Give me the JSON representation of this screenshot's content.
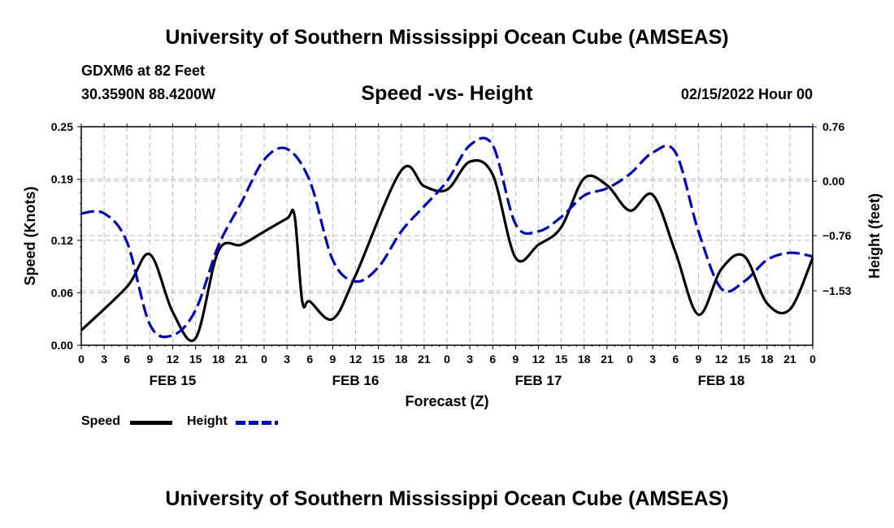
{
  "header": {
    "title": "University of Southern Mississippi Ocean Cube (AMSEAS)",
    "station": "GDXM6 at 82 Feet",
    "coords": "30.3590N  88.4200W",
    "subtitle": "Speed -vs- Height",
    "run_time": "02/15/2022 Hour 00"
  },
  "footer": {
    "title": "University of Southern Mississippi Ocean Cube (AMSEAS)"
  },
  "legend": {
    "speed": "Speed",
    "height": "Height"
  },
  "chart_data": {
    "type": "line",
    "xlabel": "Forecast (Z)",
    "ylabel_left": "Speed (Knots)",
    "ylabel_right": "Height (feet)",
    "x_range_hours": [
      0,
      96
    ],
    "x_tick_step_hours": 3,
    "x_tick_labels": [
      "0",
      "3",
      "6",
      "9",
      "12",
      "15",
      "18",
      "21",
      "0",
      "3",
      "6",
      "9",
      "12",
      "15",
      "18",
      "21",
      "0",
      "3",
      "6",
      "9",
      "12",
      "15",
      "18",
      "21",
      "0",
      "3",
      "6",
      "9",
      "12",
      "15",
      "18",
      "21",
      "0"
    ],
    "day_labels": [
      {
        "hour": 12,
        "label": "FEB 15"
      },
      {
        "hour": 36,
        "label": "FEB 16"
      },
      {
        "hour": 60,
        "label": "FEB 17"
      },
      {
        "hour": 84,
        "label": "FEB 18"
      }
    ],
    "ylim_left": [
      0,
      0.25
    ],
    "y_ticks_left": [
      0.0,
      0.06,
      0.12,
      0.19,
      0.25
    ],
    "y_tick_labels_left": [
      "0.00",
      "0.06",
      "0.12",
      "0.19",
      "0.25"
    ],
    "ylim_right": [
      -2.29,
      0.76
    ],
    "y_ticks_right": [
      0.76,
      0.0,
      -0.76,
      -1.53
    ],
    "y_tick_labels_right": [
      "0.76",
      "0.00",
      "−0.76",
      "−1.53"
    ],
    "grid": true,
    "series": [
      {
        "name": "Speed",
        "axis": "left",
        "color": "#000000",
        "dash": "solid",
        "x": [
          0,
          6,
          9,
          12,
          15,
          18,
          21,
          24,
          27,
          28,
          29,
          30,
          33,
          36,
          42,
          45,
          48,
          51,
          54,
          57,
          60,
          63,
          66,
          69,
          72,
          75,
          78,
          81,
          84,
          87,
          90,
          93,
          96
        ],
        "values": [
          0.017,
          0.067,
          0.104,
          0.038,
          0.008,
          0.108,
          0.115,
          0.13,
          0.145,
          0.148,
          0.05,
          0.05,
          0.03,
          0.08,
          0.2,
          0.182,
          0.178,
          0.21,
          0.195,
          0.1,
          0.115,
          0.135,
          0.191,
          0.183,
          0.154,
          0.172,
          0.106,
          0.035,
          0.087,
          0.102,
          0.048,
          0.041,
          0.1
        ]
      },
      {
        "name": "Height",
        "axis": "right",
        "color": "#0000cc",
        "dash": "dashed",
        "x": [
          0,
          3,
          6,
          9,
          12,
          15,
          18,
          21,
          24,
          27,
          30,
          33,
          36,
          39,
          42,
          45,
          48,
          51,
          54,
          57,
          60,
          63,
          66,
          69,
          72,
          75,
          78,
          81,
          84,
          87,
          90,
          93,
          96
        ],
        "values": [
          -0.45,
          -0.45,
          -0.85,
          -2.0,
          -2.15,
          -1.8,
          -0.9,
          -0.3,
          0.3,
          0.45,
          0.0,
          -1.1,
          -1.4,
          -1.2,
          -0.7,
          -0.35,
          0.0,
          0.5,
          0.5,
          -0.6,
          -0.7,
          -0.5,
          -0.2,
          -0.1,
          0.1,
          0.4,
          0.4,
          -0.7,
          -1.5,
          -1.4,
          -1.1,
          -1.0,
          -1.05
        ]
      }
    ]
  }
}
